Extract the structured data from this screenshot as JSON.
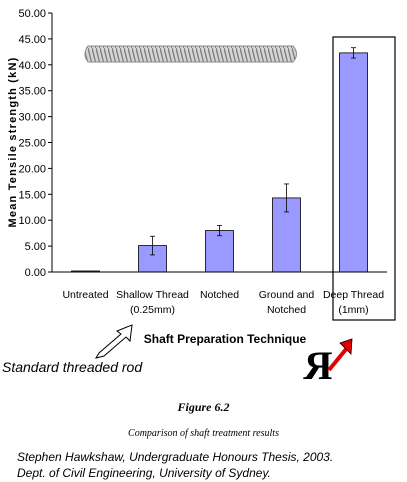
{
  "chart_data": {
    "type": "bar",
    "categories": [
      [
        "Untreated"
      ],
      [
        "Shallow Thread",
        "(0.25mm)"
      ],
      [
        "Notched"
      ],
      [
        "Ground and",
        "Notched"
      ],
      [
        "Deep Thread",
        "(1mm)"
      ]
    ],
    "values": [
      0.2,
      5.1,
      8.0,
      14.3,
      42.3
    ],
    "error_bars": [
      0.05,
      1.8,
      1.0,
      2.7,
      1.0
    ],
    "ylabel": "Mean Tensile strength (kN)",
    "xlabel": "Shaft Preparation Technique",
    "ylim": [
      0,
      50
    ],
    "yticks": [
      "0.00",
      "5.00",
      "10.00",
      "15.00",
      "20.00",
      "25.00",
      "30.00",
      "35.00",
      "40.00",
      "45.00",
      "50.00"
    ],
    "bar_color": "#9999ff",
    "grid": false,
    "highlighted_category": "Deep Thread (1mm)"
  },
  "annotations": {
    "threaded_rod_label": "Standard threaded rod",
    "highlight_arrow_color": "#e00000"
  },
  "figure": {
    "title": "Figure 6.2",
    "caption": "Comparison of shaft treatment results"
  },
  "credit": {
    "line1": "Stephen Hawkshaw, Undergraduate Honours Thesis, 2003.",
    "line2": "Dept. of Civil Engineering, University of Sydney."
  }
}
